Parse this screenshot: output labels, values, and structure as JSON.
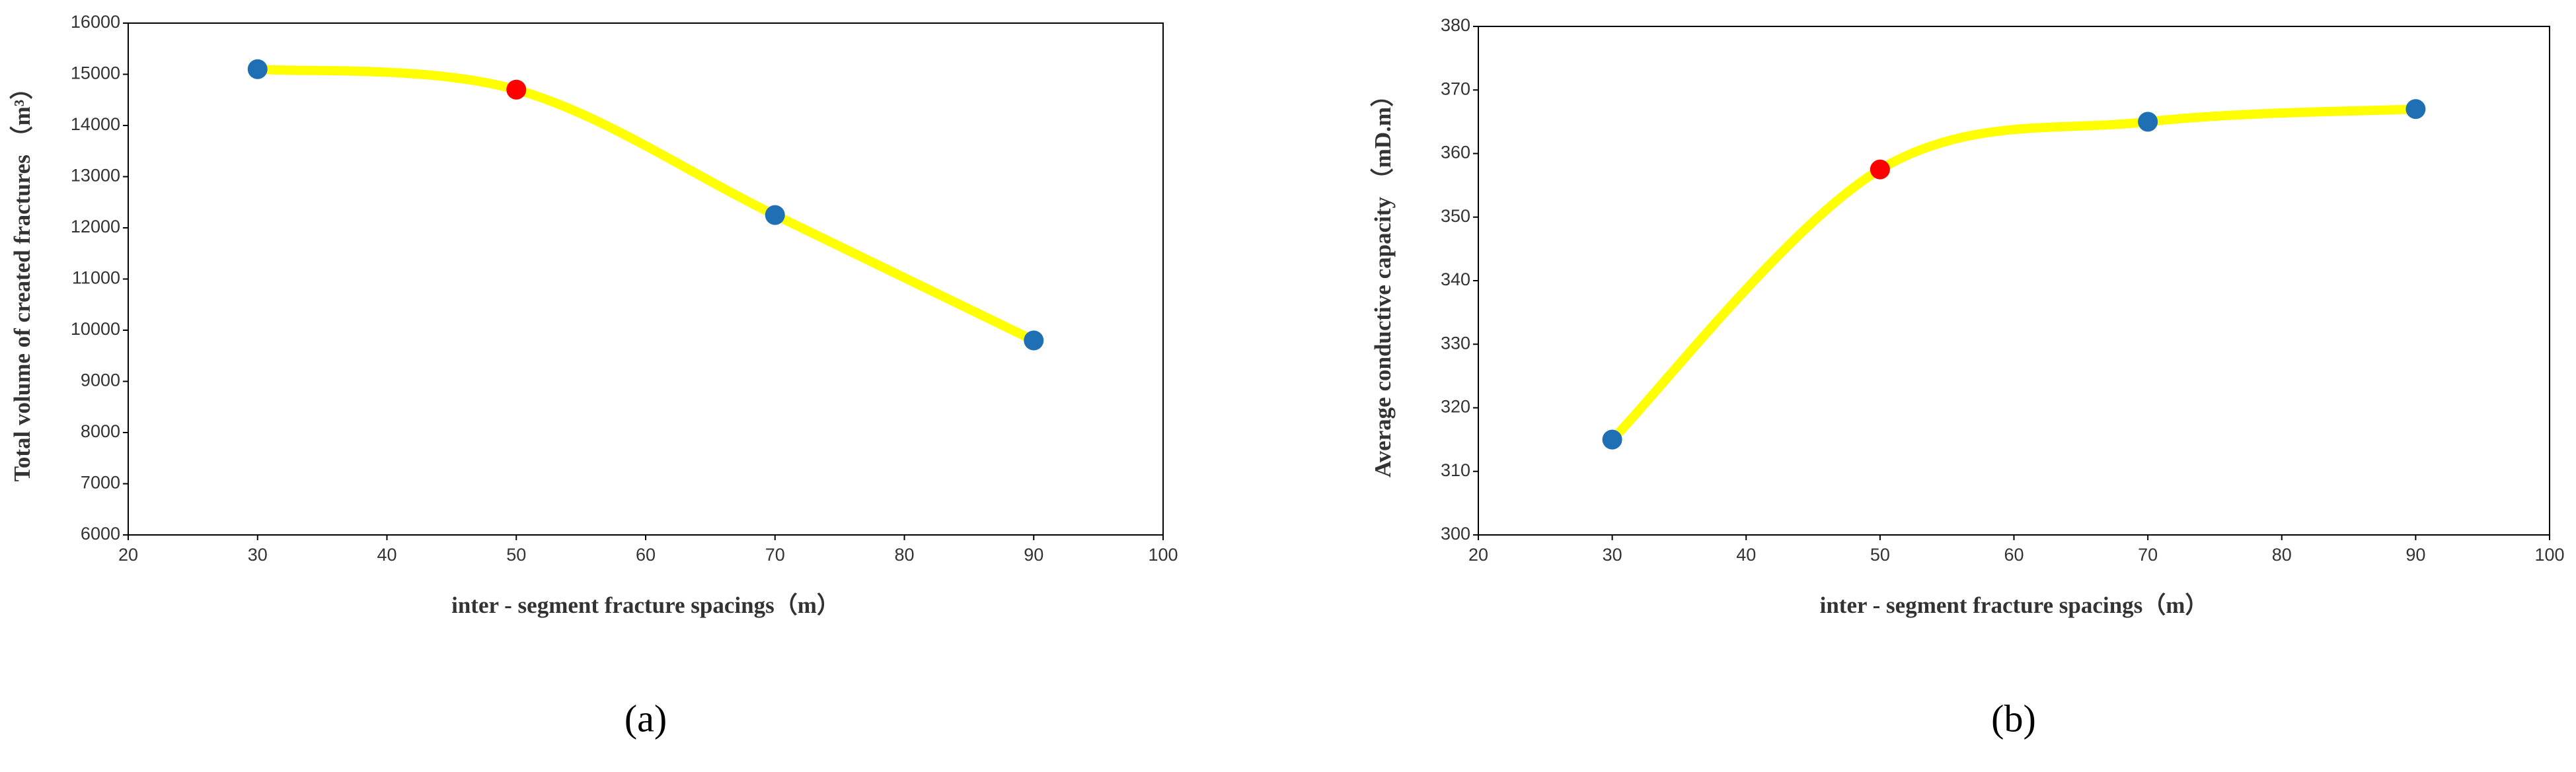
{
  "chart_data": [
    {
      "type": "line",
      "caption": "(a)",
      "x_label": "inter - segment fracture spacings（m）",
      "y_label": "Total volume of created fractures （m³）",
      "x": [
        30,
        50,
        70,
        90
      ],
      "series": [
        {
          "color": "#ffff00",
          "values": [
            15100,
            14700,
            12250,
            9800
          ],
          "marker_colors": [
            "#1f6fb5",
            "#ff0000",
            "#1f6fb5",
            "#1f6fb5"
          ]
        }
      ],
      "xlim": [
        20,
        100
      ],
      "xticks": [
        20,
        30,
        40,
        50,
        60,
        70,
        80,
        90,
        100
      ],
      "ylim": [
        6000,
        16000
      ],
      "yticks": [
        6000,
        7000,
        8000,
        9000,
        10000,
        11000,
        12000,
        13000,
        14000,
        15000,
        16000
      ],
      "smooth": true
    },
    {
      "type": "line",
      "caption": "(b)",
      "x_label": "inter - segment fracture spacings（m）",
      "y_label": "Average conductive capacity （mD.m）",
      "x": [
        30,
        50,
        70,
        90
      ],
      "series": [
        {
          "color": "#ffff00",
          "values": [
            315,
            357.5,
            365,
            367
          ],
          "marker_colors": [
            "#1f6fb5",
            "#ff0000",
            "#1f6fb5",
            "#1f6fb5"
          ]
        }
      ],
      "xlim": [
        20,
        100
      ],
      "xticks": [
        20,
        30,
        40,
        50,
        60,
        70,
        80,
        90,
        100
      ],
      "ylim": [
        300,
        380
      ],
      "yticks": [
        300,
        310,
        320,
        330,
        340,
        350,
        360,
        370,
        380
      ],
      "smooth": true
    }
  ]
}
